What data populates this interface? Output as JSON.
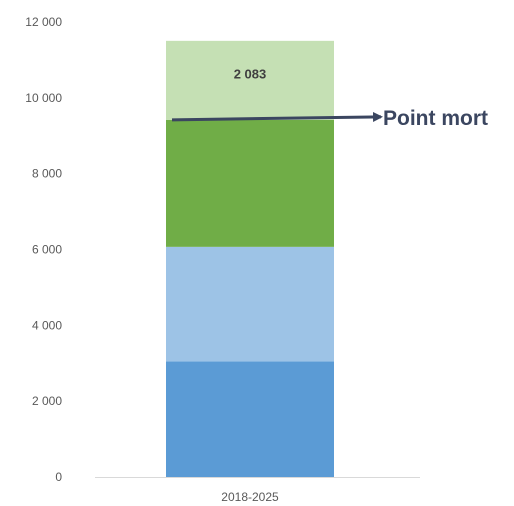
{
  "chart_data": {
    "type": "bar",
    "stacked": true,
    "categories": [
      "2018-2025"
    ],
    "series": [
      {
        "values": [
          3050
        ],
        "color": "#5b9bd5"
      },
      {
        "values": [
          3020
        ],
        "color": "#9dc3e6"
      },
      {
        "values": [
          3350
        ],
        "color": "#70ad47"
      },
      {
        "values": [
          2083
        ],
        "color": "#c5e0b4",
        "data_label": "2 083"
      }
    ],
    "ylim": [
      0,
      12000
    ],
    "yticks": [
      0,
      2000,
      4000,
      6000,
      8000,
      10000,
      12000
    ],
    "ytick_labels": [
      "0",
      "2 000",
      "4 000",
      "6 000",
      "8 000",
      "10 000",
      "12 000"
    ],
    "grid": false,
    "legend": "none",
    "annotation": {
      "text": "Point mort",
      "y": 9420,
      "arrow_color": "#3b4660"
    }
  }
}
